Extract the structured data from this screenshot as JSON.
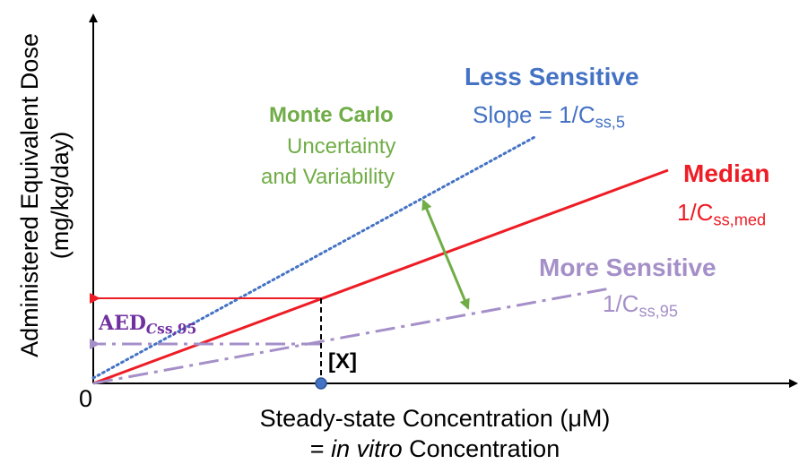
{
  "colors": {
    "axis": "#000000",
    "median": "#ee1c25",
    "less_sensitive": "#4472c4",
    "more_sensitive": "#a58fc8",
    "monte_carlo": "#70ad47",
    "aed": "#7030a0",
    "marker_fill": "#4472c4"
  },
  "axes": {
    "y_label_line1": "Administered Equivalent Dose",
    "y_label_line2": "(mg/kg/day)",
    "x_label_line1": "Steady-state Concentration (μM)",
    "x_label_prefix": "= ",
    "x_label_italic": "in vitro",
    "x_label_suffix": " Concentration",
    "origin": "0"
  },
  "less_sensitive": {
    "title": "Less Sensitive",
    "slope_text": "Slope = 1/C",
    "slope_sub": "ss,5"
  },
  "median": {
    "title": "Median",
    "slope_text": "1/C",
    "slope_sub": "ss,med"
  },
  "more_sensitive": {
    "title": "More Sensitive",
    "slope_text": "1/C",
    "slope_sub": "ss,95"
  },
  "monte_carlo": {
    "title": "Monte Carlo",
    "line2": "Uncertainty",
    "line3": "and Variability"
  },
  "aed_label": {
    "main": "AED",
    "sub_italic": "C",
    "sub_rest": "ss,95"
  },
  "x_marker_label": "[X]"
}
